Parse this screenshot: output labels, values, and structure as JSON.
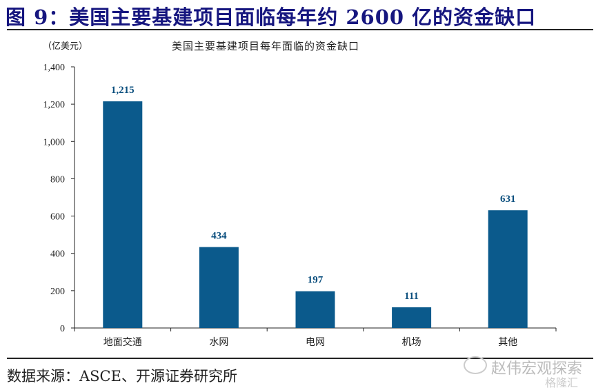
{
  "figure_title": "图 9：美国主要基建项目面临每年约 2600 亿的资金缺口",
  "source": "数据来源：ASCE、开源证券研究所",
  "watermark": {
    "account": "赵伟宏观探索",
    "brand": "格隆汇"
  },
  "colors": {
    "bar": "#0b5a8c",
    "label": "#0b4f7e",
    "title": "#16167f"
  },
  "chart_data": {
    "type": "bar",
    "title": "美国主要基建项目每年面临的资金缺口",
    "ylabel": "（亿美元）",
    "xlabel": "",
    "categories": [
      "地面交通",
      "水网",
      "电网",
      "机场",
      "其他"
    ],
    "values": [
      1215,
      434,
      197,
      111,
      631
    ],
    "data_labels": [
      "1,215",
      "434",
      "197",
      "111",
      "631"
    ],
    "ylim": [
      0,
      1400
    ],
    "yticks": [
      0,
      200,
      400,
      600,
      800,
      1000,
      1200,
      1400
    ],
    "ytick_labels": [
      "0",
      "200",
      "400",
      "600",
      "800",
      "1,000",
      "1,200",
      "1,400"
    ],
    "grid": false,
    "legend": "none"
  }
}
